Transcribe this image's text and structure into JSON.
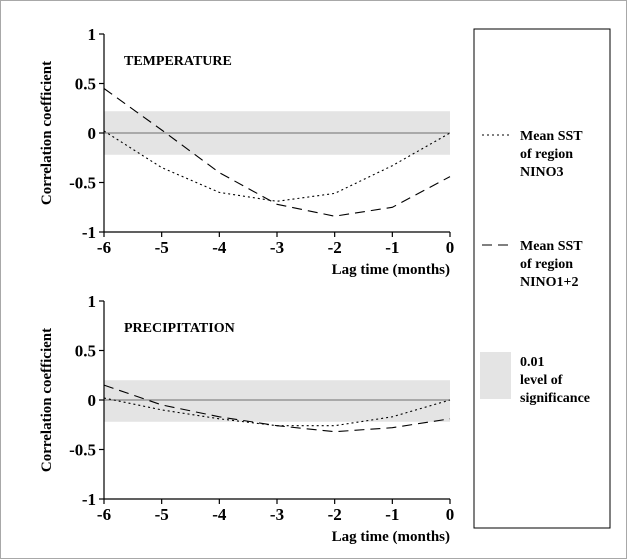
{
  "legend": {
    "items": [
      {
        "lines": [
          "Mean SST",
          "of region",
          "NINO3"
        ],
        "style": "dotted"
      },
      {
        "lines": [
          "Mean SST",
          "of region",
          "NINO1+2"
        ],
        "style": "dashed"
      },
      {
        "lines": [
          "0.01",
          "level of",
          "significance"
        ],
        "style": "band"
      }
    ]
  },
  "chart_data": [
    {
      "type": "line",
      "title": "TEMPERATURE",
      "xlabel": "Lag time (months)",
      "ylabel": "Correlation coefficient",
      "xlim": [
        -6,
        0
      ],
      "ylim": [
        -1,
        1
      ],
      "xticks": [
        "-6",
        "-5",
        "-4",
        "-3",
        "-2",
        "-1",
        "0"
      ],
      "yticks": [
        "1",
        "0.5",
        "0",
        "-0.5",
        "-1"
      ],
      "significance_band": [
        -0.22,
        0.22
      ],
      "zero_line": true,
      "series": [
        {
          "name": "Mean SST of region NINO3",
          "style": "dotted",
          "x": [
            -6,
            -5,
            -4,
            -3,
            -2,
            -1,
            0
          ],
          "y": [
            0.02,
            -0.35,
            -0.6,
            -0.69,
            -0.61,
            -0.33,
            0.0
          ]
        },
        {
          "name": "Mean SST of region NINO1+2",
          "style": "dashed",
          "x": [
            -6,
            -5,
            -4,
            -3,
            -2,
            -1,
            0
          ],
          "y": [
            0.45,
            0.03,
            -0.4,
            -0.72,
            -0.84,
            -0.75,
            -0.44
          ]
        }
      ]
    },
    {
      "type": "line",
      "title": "PRECIPITATION",
      "xlabel": "Lag time (months)",
      "ylabel": "Correlation coefficient",
      "xlim": [
        -6,
        0
      ],
      "ylim": [
        -1,
        1
      ],
      "xticks": [
        "-6",
        "-5",
        "-4",
        "-3",
        "-2",
        "-1",
        "0"
      ],
      "yticks": [
        "1",
        "0.5",
        "0",
        "-0.5",
        "-1"
      ],
      "significance_band": [
        -0.22,
        0.2
      ],
      "zero_line": true,
      "series": [
        {
          "name": "Mean SST of region NINO3",
          "style": "dotted",
          "x": [
            -6,
            -5,
            -4,
            -3,
            -2,
            -1,
            0
          ],
          "y": [
            0.02,
            -0.1,
            -0.19,
            -0.26,
            -0.26,
            -0.17,
            0.0
          ]
        },
        {
          "name": "Mean SST of region NINO1+2",
          "style": "dashed",
          "x": [
            -6,
            -5,
            -4,
            -3,
            -2,
            -1,
            0
          ],
          "y": [
            0.15,
            -0.05,
            -0.17,
            -0.26,
            -0.32,
            -0.28,
            -0.19
          ]
        }
      ]
    }
  ]
}
